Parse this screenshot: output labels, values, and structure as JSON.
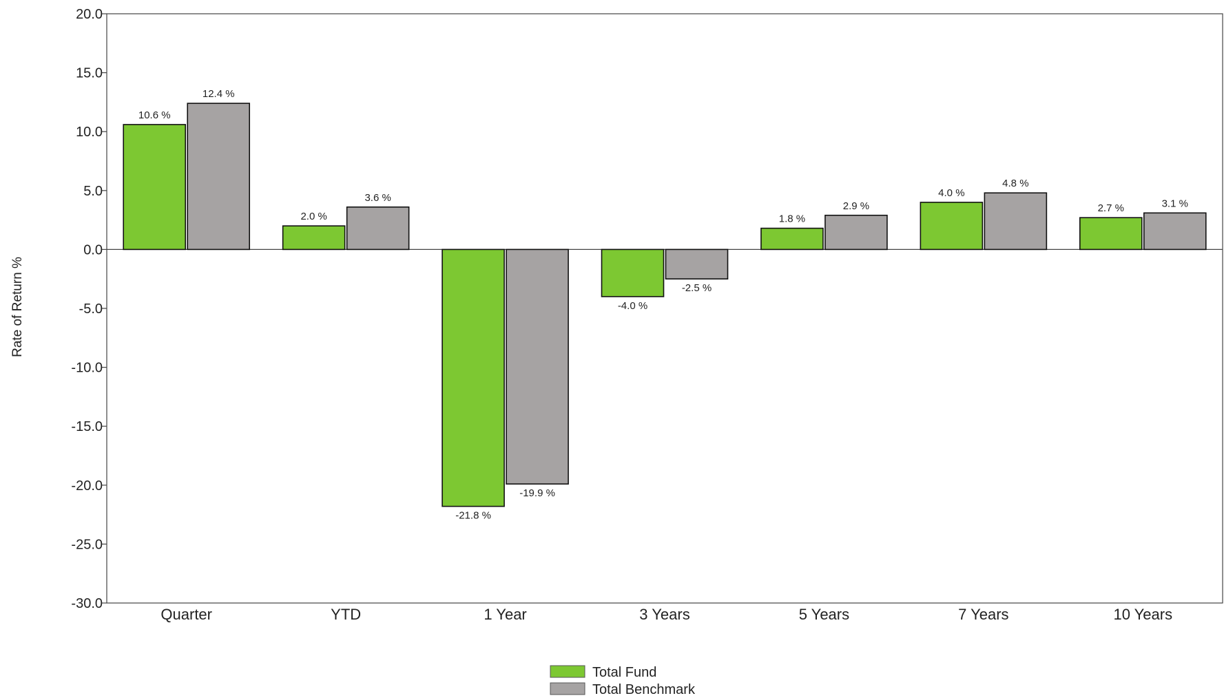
{
  "chart_data": {
    "type": "bar",
    "title": "",
    "xlabel": "",
    "ylabel": "Rate of Return %",
    "ylim": [
      -30,
      20
    ],
    "ytick_step": 5,
    "ytick_labels": [
      "20.0",
      "15.0",
      "10.0",
      "5.0",
      "0.0",
      "-5.0",
      "-10.0",
      "-15.0",
      "-20.0",
      "-25.0",
      "-30.0"
    ],
    "grid": false,
    "legend_position": "bottom",
    "categories": [
      "Quarter",
      "YTD",
      "1 Year",
      "3 Years",
      "5 Years",
      "7 Years",
      "10 Years"
    ],
    "series": [
      {
        "name": "Total Fund",
        "color": "#7dc832",
        "values": [
          10.6,
          2.0,
          -21.8,
          -4.0,
          1.8,
          4.0,
          2.7
        ],
        "labels": [
          "10.6 %",
          "2.0 %",
          "-21.8 %",
          "-4.0 %",
          "1.8 %",
          "4.0 %",
          "2.7 %"
        ]
      },
      {
        "name": "Total Benchmark",
        "color": "#a6a3a3",
        "values": [
          12.4,
          3.6,
          -19.9,
          -2.5,
          2.9,
          4.8,
          3.1
        ],
        "labels": [
          "12.4 %",
          "3.6 %",
          "-19.9 %",
          "-2.5 %",
          "2.9 %",
          "4.8 %",
          "3.1 %"
        ]
      }
    ]
  }
}
